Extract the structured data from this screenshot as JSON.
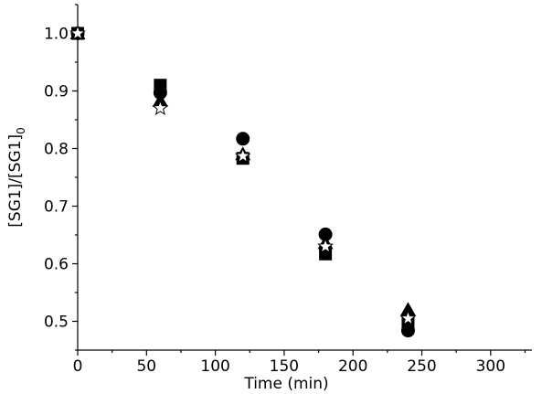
{
  "chart_data": {
    "type": "scatter",
    "title": "",
    "xlabel": "Time (min)",
    "ylabel_main": "[SG1]/[SG1]",
    "ylabel_sub": "0",
    "xlim": [
      0,
      330
    ],
    "ylim": [
      0.45,
      1.05
    ],
    "x_ticks": [
      0,
      50,
      100,
      150,
      200,
      250,
      300
    ],
    "y_ticks": [
      0.5,
      0.6,
      0.7,
      0.8,
      0.9,
      1.0
    ],
    "x_tick_labels": [
      "0",
      "50",
      "100",
      "150",
      "200",
      "250",
      "300"
    ],
    "y_tick_labels": [
      "0.5",
      "0.6",
      "0.7",
      "0.8",
      "0.9",
      "1.0"
    ],
    "grid": false,
    "legend": "none",
    "series": [
      {
        "marker": "square",
        "fill": "#000000",
        "x": [
          0,
          60,
          120,
          180,
          240
        ],
        "y": [
          1.0,
          0.91,
          0.783,
          0.617,
          0.496
        ]
      },
      {
        "marker": "circle",
        "fill": "#000000",
        "x": [
          0,
          60,
          120,
          180,
          240
        ],
        "y": [
          1.0,
          0.897,
          0.817,
          0.651,
          0.484
        ]
      },
      {
        "marker": "triangle",
        "fill": "#000000",
        "x": [
          0,
          60,
          120,
          180,
          240
        ],
        "y": [
          1.0,
          0.883,
          0.79,
          0.636,
          0.52
        ]
      },
      {
        "marker": "star",
        "fill": "#ffffff",
        "x": [
          0,
          60,
          120,
          180,
          240
        ],
        "y": [
          1.0,
          0.87,
          0.787,
          0.63,
          0.505
        ]
      }
    ]
  }
}
